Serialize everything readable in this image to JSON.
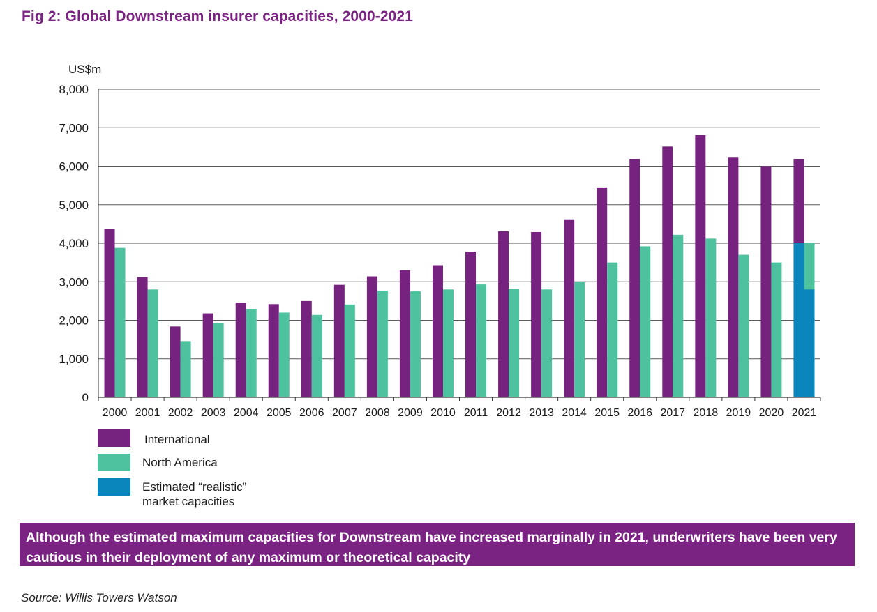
{
  "page": {
    "title": "Fig 2: Global Downstream insurer capacities, 2000-2021",
    "callout": "Although the estimated maximum capacities for Downstream have increased marginally in 2021, underwriters have been very cautious in their deployment of any maximum or theoretical capacity",
    "source": "Source: Willis Towers Watson"
  },
  "legend": [
    {
      "label": "International",
      "color": "#75237e"
    },
    {
      "label": "North America",
      "color": "#4ec29f"
    },
    {
      "label": "Estimated “realistic”\nmarket capacities",
      "color": "#0a86bd"
    }
  ],
  "chart_data": {
    "type": "bar",
    "title": "Fig 2: Global Downstream insurer capacities, 2000-2021",
    "ylabel": "US$m",
    "xlabel": "",
    "ylim": [
      0,
      8000
    ],
    "yticks": [
      "0",
      "1,000",
      "2,000",
      "3,000",
      "4,000",
      "5,000",
      "6,000",
      "7,000",
      "8,000"
    ],
    "ytick_values": [
      0,
      1000,
      2000,
      3000,
      4000,
      5000,
      6000,
      7000,
      8000
    ],
    "grid": true,
    "legend_position": "bottom-left",
    "categories": [
      "2000",
      "2001",
      "2002",
      "2003",
      "2004",
      "2005",
      "2006",
      "2007",
      "2008",
      "2009",
      "2010",
      "2011",
      "2012",
      "2013",
      "2014",
      "2015",
      "2016",
      "2017",
      "2018",
      "2019",
      "2020",
      "2021"
    ],
    "series": [
      {
        "name": "International",
        "color": "#75237e",
        "values": [
          4380,
          3120,
          1840,
          2180,
          2460,
          2420,
          2500,
          2920,
          3140,
          3300,
          3430,
          3780,
          4310,
          4290,
          4620,
          5450,
          6190,
          6510,
          6810,
          6240,
          6000,
          6190
        ]
      },
      {
        "name": "North America",
        "color": "#4ec29f",
        "values": [
          3880,
          2800,
          1460,
          1920,
          2280,
          2200,
          2140,
          2410,
          2770,
          2750,
          2800,
          2930,
          2820,
          2800,
          3000,
          3500,
          3920,
          4220,
          4120,
          3700,
          3500,
          4000
        ]
      },
      {
        "name": "Estimated “realistic” market capacities",
        "color": "#0a86bd",
        "values": [
          null,
          null,
          null,
          null,
          null,
          null,
          null,
          null,
          null,
          null,
          null,
          null,
          null,
          null,
          null,
          null,
          null,
          null,
          null,
          null,
          null,
          4000
        ],
        "note_values": {
          "North America realistic": 2800
        }
      }
    ]
  }
}
